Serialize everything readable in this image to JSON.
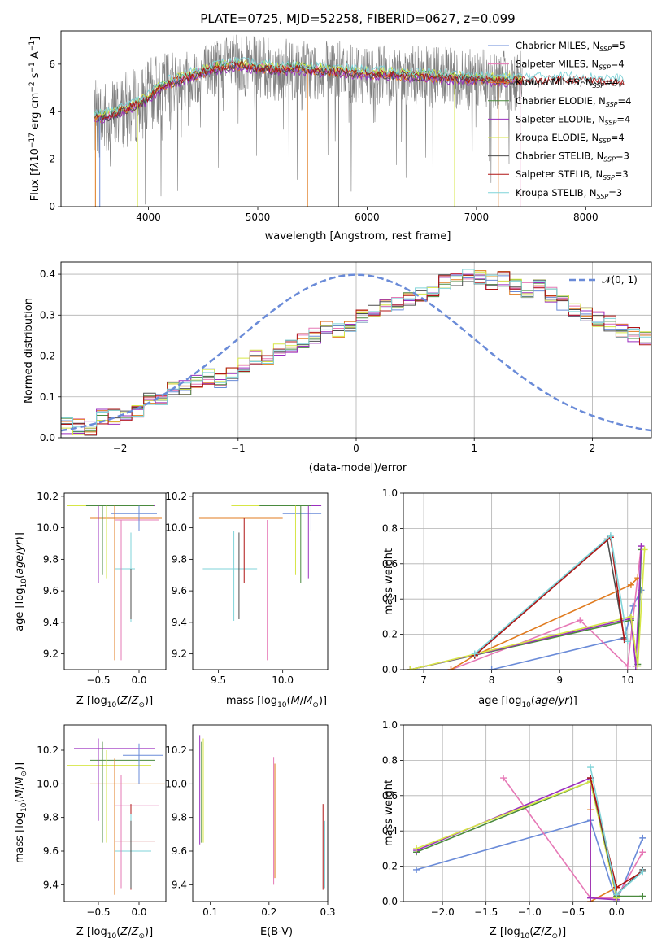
{
  "figure_title": "PLATE=0725, MJD=52258, FIBERID=0627, z=0.099",
  "colors": {
    "chabrier_miles": "#6a8bd8",
    "salpeter_miles": "#e678b6",
    "kroupa_miles": "#e07b1f",
    "chabrier_elodie": "#4a8a3e",
    "salpeter_elodie": "#9b2fbf",
    "kroupa_elodie": "#d6e645",
    "chabrier_stelib": "#4d4d4d",
    "salpeter_stelib": "#b01515",
    "kroupa_stelib": "#7fd3d8",
    "data": "#808080",
    "normal_curve": "#6a8bd8"
  },
  "chart_data": [
    {
      "id": "spectrum",
      "type": "line",
      "title": "",
      "xlabel": "wavelength [Angstrom, rest frame]",
      "ylabel": "Flux [f_λ 10^-17 erg cm^-2 s^-1 A^-1]",
      "xlim": [
        3200,
        8600
      ],
      "ylim": [
        0,
        7.4
      ],
      "xticks": [
        4000,
        5000,
        6000,
        7000,
        8000
      ],
      "yticks": [
        0,
        2,
        4,
        6
      ],
      "grid": false,
      "legend_position": "top-right",
      "legend": [
        {
          "key": "chabrier_miles",
          "main": "Chabrier MILES, N",
          "sub": "SSP",
          "tail": "=5"
        },
        {
          "key": "salpeter_miles",
          "main": "Salpeter MILES, N",
          "sub": "SSP",
          "tail": "=4"
        },
        {
          "key": "kroupa_miles",
          "main": "Kroupa MILES, N",
          "sub": "SSP",
          "tail": "=4"
        },
        {
          "key": "chabrier_elodie",
          "main": "Chabrier ELODIE, N",
          "sub": "SSP",
          "tail": "=4"
        },
        {
          "key": "salpeter_elodie",
          "main": "Salpeter ELODIE, N",
          "sub": "SSP",
          "tail": "=4"
        },
        {
          "key": "kroupa_elodie",
          "main": "Kroupa ELODIE, N",
          "sub": "SSP",
          "tail": "=4"
        },
        {
          "key": "chabrier_stelib",
          "main": "Chabrier STELIB, N",
          "sub": "SSP",
          "tail": "=3"
        },
        {
          "key": "salpeter_stelib",
          "main": "Salpeter STELIB, N",
          "sub": "SSP",
          "tail": "=3"
        },
        {
          "key": "kroupa_stelib",
          "main": "Kroupa STELIB, N",
          "sub": "SSP",
          "tail": "=3"
        }
      ],
      "continuum": [
        [
          3500,
          3.75
        ],
        [
          3650,
          3.8
        ],
        [
          3800,
          4.1
        ],
        [
          3950,
          4.4
        ],
        [
          4050,
          4.8
        ],
        [
          4200,
          5.2
        ],
        [
          4400,
          5.5
        ],
        [
          4600,
          5.8
        ],
        [
          4800,
          5.95
        ],
        [
          5000,
          5.85
        ],
        [
          5200,
          5.75
        ],
        [
          5400,
          5.8
        ],
        [
          5600,
          5.7
        ],
        [
          5800,
          5.65
        ],
        [
          6000,
          5.6
        ],
        [
          6200,
          5.55
        ],
        [
          6400,
          5.5
        ],
        [
          6600,
          5.45
        ],
        [
          6800,
          5.4
        ],
        [
          7000,
          5.35
        ],
        [
          7200,
          5.3
        ],
        [
          7400,
          5.3
        ],
        [
          7600,
          5.3
        ],
        [
          7800,
          5.35
        ],
        [
          8000,
          5.3
        ],
        [
          8200,
          5.25
        ],
        [
          8350,
          5.2
        ]
      ]
    },
    {
      "id": "residuals",
      "type": "bar",
      "xlabel": "(data-model)/error",
      "ylabel": "Normed distribution",
      "xlim": [
        -2.5,
        2.5
      ],
      "ylim": [
        0,
        0.43
      ],
      "xticks": [
        -2,
        -1,
        0,
        1,
        2
      ],
      "yticks": [
        0.0,
        0.1,
        0.2,
        0.3,
        0.4
      ],
      "grid": true,
      "legend_position": "top-right",
      "curve_label": "𝒩(0, 1)",
      "bin_width": 0.1,
      "bin_start": -2.6,
      "histogram_values": [
        0.03,
        0.03,
        0.028,
        0.025,
        0.05,
        0.05,
        0.055,
        0.06,
        0.1,
        0.1,
        0.12,
        0.12,
        0.14,
        0.15,
        0.14,
        0.16,
        0.18,
        0.2,
        0.19,
        0.21,
        0.22,
        0.24,
        0.25,
        0.27,
        0.26,
        0.28,
        0.3,
        0.31,
        0.32,
        0.33,
        0.34,
        0.35,
        0.36,
        0.38,
        0.39,
        0.4,
        0.39,
        0.38,
        0.39,
        0.37,
        0.36,
        0.37,
        0.35,
        0.33,
        0.31,
        0.3,
        0.29,
        0.28,
        0.26,
        0.25,
        0.24,
        0.22,
        0.2,
        0.19,
        0.17,
        0.17,
        0.15,
        0.13,
        0.12,
        0.1,
        0.09,
        0.08,
        0.07,
        0.065,
        0.06,
        0.05,
        0.045,
        0.04,
        0.035,
        0.03,
        0.025,
        0.02,
        0.02
      ]
    },
    {
      "id": "age-vs-Z",
      "type": "scatter",
      "xlabel": "Z [log10(Z/Z⊙)]",
      "ylabel": "age  [log10(age/yr)]",
      "xlim": [
        -0.92,
        0.33
      ],
      "ylim": [
        9.1,
        10.22
      ],
      "xticks": [
        -0.5,
        0.0
      ],
      "yticks": [
        9.2,
        9.4,
        9.6,
        9.8,
        10.0,
        10.2
      ],
      "grid": false,
      "hlines": [
        {
          "y": 10.14,
          "x0": -0.88,
          "x1": 0.15,
          "c": "kroupa_elodie"
        },
        {
          "y": 10.14,
          "x0": -0.55,
          "x1": 0.2,
          "c": "salpeter_elodie"
        },
        {
          "y": 10.14,
          "x0": -0.65,
          "x1": 0.18,
          "c": "chabrier_elodie"
        },
        {
          "y": 10.09,
          "x0": -0.35,
          "x1": 0.22,
          "c": "chabrier_miles"
        },
        {
          "y": 10.06,
          "x0": -0.6,
          "x1": 0.28,
          "c": "kroupa_miles"
        },
        {
          "y": 10.05,
          "x0": -0.3,
          "x1": 0.25,
          "c": "salpeter_miles"
        },
        {
          "y": 9.74,
          "x0": -0.3,
          "x1": -0.05,
          "c": "chabrier_stelib"
        },
        {
          "y": 9.74,
          "x0": -0.3,
          "x1": -0.05,
          "c": "kroupa_stelib"
        },
        {
          "y": 9.65,
          "x0": -0.3,
          "x1": 0.2,
          "c": "salpeter_stelib"
        }
      ],
      "vlines": [
        {
          "x": -0.5,
          "y0": 9.65,
          "y1": 10.14,
          "c": "salpeter_elodie"
        },
        {
          "x": -0.45,
          "y0": 9.7,
          "y1": 10.14,
          "c": "chabrier_elodie"
        },
        {
          "x": -0.4,
          "y0": 9.68,
          "y1": 10.14,
          "c": "kroupa_elodie"
        },
        {
          "x": -0.3,
          "y0": 9.16,
          "y1": 10.14,
          "c": "kroupa_miles"
        },
        {
          "x": -0.22,
          "y0": 9.16,
          "y1": 10.05,
          "c": "salpeter_miles"
        },
        {
          "x": -0.1,
          "y0": 9.4,
          "y1": 9.97,
          "c": "kroupa_stelib"
        },
        {
          "x": -0.1,
          "y0": 9.42,
          "y1": 9.74,
          "c": "chabrier_stelib"
        },
        {
          "x": 0.0,
          "y0": 9.98,
          "y1": 10.14,
          "c": "chabrier_miles"
        }
      ]
    },
    {
      "id": "age-vs-mass",
      "type": "scatter",
      "xlabel": "mass [log10(M/M⊙)]",
      "ylabel": "",
      "xlim": [
        9.3,
        10.35
      ],
      "ylim": [
        9.1,
        10.22
      ],
      "xticks": [
        9.5,
        10.0
      ],
      "yticks": [
        9.2,
        9.4,
        9.6,
        9.8,
        10.0,
        10.2
      ],
      "grid": false,
      "hlines": [
        {
          "y": 10.14,
          "x0": 9.6,
          "x1": 10.18,
          "c": "kroupa_elodie"
        },
        {
          "y": 10.14,
          "x0": 9.85,
          "x1": 10.3,
          "c": "salpeter_elodie"
        },
        {
          "y": 10.14,
          "x0": 9.82,
          "x1": 10.22,
          "c": "chabrier_elodie"
        },
        {
          "y": 10.09,
          "x0": 10.0,
          "x1": 10.3,
          "c": "chabrier_miles"
        },
        {
          "y": 10.06,
          "x0": 9.35,
          "x1": 10.0,
          "c": "kroupa_miles"
        },
        {
          "y": 9.74,
          "x0": 9.38,
          "x1": 9.8,
          "c": "chabrier_stelib"
        },
        {
          "y": 9.74,
          "x0": 9.38,
          "x1": 9.8,
          "c": "kroupa_stelib"
        },
        {
          "y": 9.65,
          "x0": 9.5,
          "x1": 9.88,
          "c": "salpeter_stelib"
        }
      ],
      "vlines": [
        {
          "x": 9.62,
          "y0": 9.41,
          "y1": 9.98,
          "c": "kroupa_stelib"
        },
        {
          "x": 9.66,
          "y0": 9.42,
          "y1": 9.97,
          "c": "chabrier_stelib"
        },
        {
          "x": 9.7,
          "y0": 9.65,
          "y1": 10.06,
          "c": "salpeter_stelib"
        },
        {
          "x": 9.88,
          "y0": 9.16,
          "y1": 10.05,
          "c": "salpeter_miles"
        },
        {
          "x": 10.1,
          "y0": 9.7,
          "y1": 10.14,
          "c": "kroupa_elodie"
        },
        {
          "x": 10.14,
          "y0": 9.65,
          "y1": 10.14,
          "c": "chabrier_elodie"
        },
        {
          "x": 10.2,
          "y0": 9.68,
          "y1": 10.14,
          "c": "salpeter_elodie"
        },
        {
          "x": 10.22,
          "y0": 9.98,
          "y1": 10.14,
          "c": "chabrier_miles"
        }
      ]
    },
    {
      "id": "mass-weight-vs-age",
      "type": "line",
      "xlabel": "age  [log10(age/yr)]",
      "ylabel": "mass weight",
      "xlim": [
        6.7,
        10.35
      ],
      "ylim": [
        0.0,
        1.0
      ],
      "xticks": [
        7,
        8,
        9,
        10
      ],
      "yticks": [
        0.0,
        0.2,
        0.4,
        0.6,
        0.8,
        1.0
      ],
      "grid": true,
      "series": [
        {
          "c": "chabrier_miles",
          "x": [
            6.8,
            8.0,
            9.95,
            10.08,
            10.2
          ],
          "y": [
            0.0,
            0.0,
            0.18,
            0.36,
            0.45
          ]
        },
        {
          "c": "salpeter_miles",
          "x": [
            7.4,
            9.3,
            10.0,
            10.2
          ],
          "y": [
            0.0,
            0.28,
            0.02,
            0.7
          ]
        },
        {
          "c": "kroupa_miles",
          "x": [
            7.4,
            7.75,
            10.05,
            10.15
          ],
          "y": [
            0.0,
            0.08,
            0.48,
            0.52
          ]
        },
        {
          "c": "chabrier_elodie",
          "x": [
            6.8,
            10.05,
            10.15,
            10.2
          ],
          "y": [
            0.0,
            0.28,
            0.03,
            0.68
          ]
        },
        {
          "c": "salpeter_elodie",
          "x": [
            6.8,
            10.05,
            10.12,
            10.2
          ],
          "y": [
            0.0,
            0.29,
            0.02,
            0.7
          ]
        },
        {
          "c": "kroupa_elodie",
          "x": [
            6.8,
            10.05,
            10.15,
            10.25
          ],
          "y": [
            0.0,
            0.3,
            0.02,
            0.68
          ]
        },
        {
          "c": "chabrier_stelib",
          "x": [
            7.75,
            9.7,
            9.95
          ],
          "y": [
            0.08,
            0.74,
            0.18
          ]
        },
        {
          "c": "salpeter_stelib",
          "x": [
            7.75,
            9.75,
            9.95
          ],
          "y": [
            0.08,
            0.75,
            0.17
          ]
        },
        {
          "c": "kroupa_stelib",
          "x": [
            7.75,
            9.75,
            10.0
          ],
          "y": [
            0.09,
            0.76,
            0.16
          ]
        }
      ]
    },
    {
      "id": "mass-vs-Z",
      "type": "scatter",
      "xlabel": "Z [log10(Z/Z⊙)]",
      "ylabel": "mass [log10(M/M⊙)]",
      "xlim": [
        -0.92,
        0.33
      ],
      "ylim": [
        9.3,
        10.35
      ],
      "xticks": [
        -0.5,
        0.0
      ],
      "yticks": [
        9.4,
        9.6,
        9.8,
        10.0,
        10.2
      ],
      "grid": false,
      "hlines": [
        {
          "y": 10.21,
          "x0": -0.8,
          "x1": 0.2,
          "c": "salpeter_elodie"
        },
        {
          "y": 10.17,
          "x0": -0.2,
          "x1": 0.3,
          "c": "chabrier_miles"
        },
        {
          "y": 10.14,
          "x0": -0.6,
          "x1": 0.2,
          "c": "chabrier_elodie"
        },
        {
          "y": 10.11,
          "x0": -0.88,
          "x1": 0.15,
          "c": "kroupa_elodie"
        },
        {
          "y": 10.0,
          "x0": -0.6,
          "x1": 0.32,
          "c": "kroupa_miles"
        },
        {
          "y": 9.87,
          "x0": -0.3,
          "x1": 0.25,
          "c": "salpeter_miles"
        },
        {
          "y": 9.66,
          "x0": -0.3,
          "x1": 0.2,
          "c": "salpeter_stelib"
        },
        {
          "y": 9.6,
          "x0": -0.3,
          "x1": 0.15,
          "c": "chabrier_stelib"
        },
        {
          "y": 9.6,
          "x0": -0.3,
          "x1": 0.15,
          "c": "kroupa_stelib"
        }
      ],
      "vlines": [
        {
          "x": -0.5,
          "y0": 9.78,
          "y1": 10.27,
          "c": "salpeter_elodie"
        },
        {
          "x": -0.45,
          "y0": 9.65,
          "y1": 10.25,
          "c": "chabrier_elodie"
        },
        {
          "x": -0.4,
          "y0": 9.65,
          "y1": 10.2,
          "c": "kroupa_elodie"
        },
        {
          "x": -0.3,
          "y0": 9.34,
          "y1": 10.15,
          "c": "kroupa_miles"
        },
        {
          "x": -0.22,
          "y0": 9.38,
          "y1": 10.05,
          "c": "salpeter_miles"
        },
        {
          "x": -0.1,
          "y0": 9.37,
          "y1": 9.88,
          "c": "salpeter_stelib"
        },
        {
          "x": -0.1,
          "y0": 9.4,
          "y1": 9.82,
          "c": "kroupa_stelib"
        },
        {
          "x": -0.1,
          "y0": 9.38,
          "y1": 9.78,
          "c": "chabrier_stelib"
        },
        {
          "x": 0.0,
          "y0": 10.0,
          "y1": 10.24,
          "c": "chabrier_miles"
        }
      ]
    },
    {
      "id": "mass-vs-EBV",
      "type": "scatter",
      "xlabel": "E(B-V)",
      "ylabel": "",
      "xlim": [
        0.07,
        0.3
      ],
      "ylim": [
        9.3,
        10.35
      ],
      "xticks": [
        0.1,
        0.2,
        0.3
      ],
      "yticks": [
        9.4,
        9.6,
        9.8,
        10.0,
        10.2
      ],
      "grid": false,
      "vlines": [
        {
          "x": 0.082,
          "y0": 9.64,
          "y1": 10.29,
          "c": "salpeter_elodie"
        },
        {
          "x": 0.085,
          "y0": 9.65,
          "y1": 10.25,
          "c": "chabrier_elodie"
        },
        {
          "x": 0.088,
          "y0": 9.65,
          "y1": 10.27,
          "c": "kroupa_elodie"
        },
        {
          "x": 0.208,
          "y0": 9.4,
          "y1": 10.16,
          "c": "salpeter_miles"
        },
        {
          "x": 0.21,
          "y0": 9.44,
          "y1": 10.12,
          "c": "kroupa_miles"
        },
        {
          "x": 0.292,
          "y0": 9.37,
          "y1": 9.88,
          "c": "salpeter_stelib"
        },
        {
          "x": 0.295,
          "y0": 9.38,
          "y1": 9.78,
          "c": "kroupa_stelib"
        }
      ]
    },
    {
      "id": "mass-weight-vs-Z",
      "type": "line",
      "xlabel": "Z [log10(Z/Z⊙)]",
      "ylabel": "mass weight",
      "xlim": [
        -2.45,
        0.4
      ],
      "ylim": [
        0.0,
        1.0
      ],
      "xticks": [
        -2.0,
        -1.5,
        -1.0,
        -0.5,
        0.0
      ],
      "yticks": [
        0.0,
        0.2,
        0.4,
        0.6,
        0.8,
        1.0
      ],
      "grid": true,
      "series": [
        {
          "c": "chabrier_miles",
          "x": [
            -2.3,
            -0.3,
            0.0,
            0.3
          ],
          "y": [
            0.18,
            0.46,
            0.0,
            0.36
          ]
        },
        {
          "c": "salpeter_miles",
          "x": [
            -1.3,
            -0.3,
            0.0,
            0.3
          ],
          "y": [
            0.7,
            0.02,
            0.02,
            0.28
          ]
        },
        {
          "c": "kroupa_miles",
          "x": [
            -0.3,
            -0.3,
            0.0
          ],
          "y": [
            0.52,
            0.0,
            0.08
          ]
        },
        {
          "c": "chabrier_elodie",
          "x": [
            -2.3,
            -0.3,
            0.0,
            0.3
          ],
          "y": [
            0.28,
            0.68,
            0.03,
            0.03
          ]
        },
        {
          "c": "salpeter_elodie",
          "x": [
            -2.3,
            -0.3,
            -0.3,
            0.0
          ],
          "y": [
            0.29,
            0.7,
            0.02,
            0.01
          ]
        },
        {
          "c": "kroupa_elodie",
          "x": [
            -2.3,
            -0.3,
            0.0
          ],
          "y": [
            0.3,
            0.68,
            0.02
          ]
        },
        {
          "c": "chabrier_stelib",
          "x": [
            -0.3,
            0.0,
            0.3
          ],
          "y": [
            0.7,
            0.04,
            0.18
          ]
        },
        {
          "c": "salpeter_stelib",
          "x": [
            -0.3,
            0.0,
            0.3
          ],
          "y": [
            0.7,
            0.08,
            0.17
          ]
        },
        {
          "c": "kroupa_stelib",
          "x": [
            -0.3,
            0.0,
            0.3
          ],
          "y": [
            0.76,
            0.04,
            0.17
          ]
        }
      ]
    }
  ]
}
